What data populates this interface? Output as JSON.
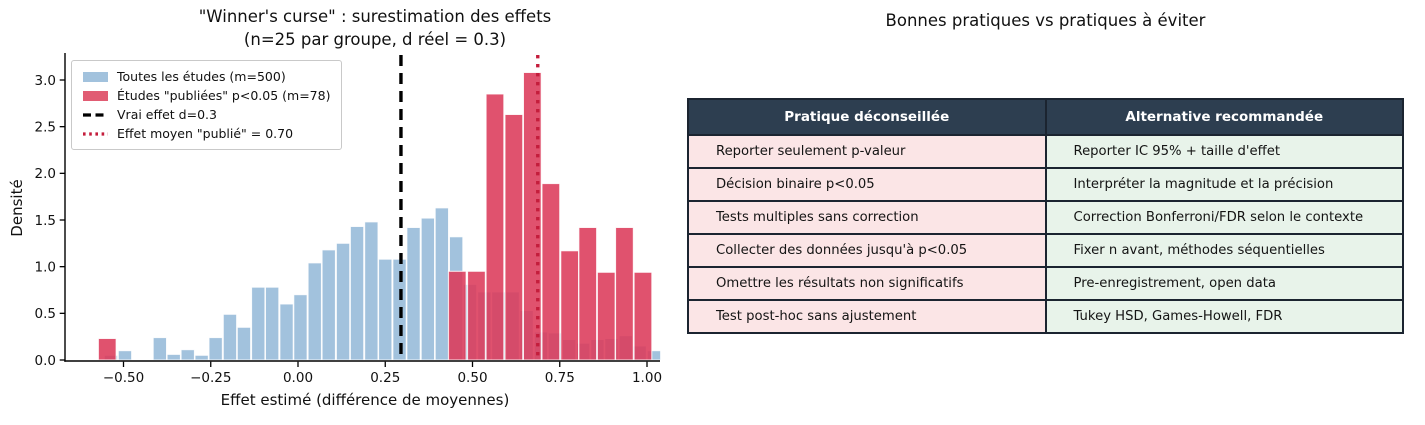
{
  "chart": {
    "title_line1": "\"Winner's curse\" : surestimation des effets",
    "title_line2": "(n=25 par groupe, d réel = 0.3)",
    "xlabel": "Effet estimé (différence de moyennes)",
    "ylabel": "Densité",
    "legend": [
      {
        "label": "Toutes les études (m=500)",
        "type": "patch",
        "color": "#a2c2dd"
      },
      {
        "label": "Études \"publiées\" p<0.05 (m=78)",
        "type": "patch",
        "color": "#e15c73"
      },
      {
        "label": "Vrai effet d=0.3",
        "type": "dashed",
        "color": "#000000"
      },
      {
        "label": "Effet moyen \"publié\" = 0.70",
        "type": "dotted",
        "color": "#c41d3c"
      }
    ]
  },
  "chart_data": {
    "type": "bar",
    "subtype": "overlaid-histograms",
    "title": "\"Winner's curse\" : surestimation des effets (n=25 par groupe, d réel = 0.3)",
    "xlabel": "Effet estimé (différence de moyennes)",
    "ylabel": "Densité",
    "xlim": [
      -0.67,
      1.04
    ],
    "ylim": [
      0,
      3.27
    ],
    "grid": false,
    "legend_position": "upper-left",
    "xticks": [
      -0.5,
      -0.25,
      0,
      0.25,
      0.5,
      0.75,
      1.0
    ],
    "xtick_labels": [
      "−0.50",
      "−0.25",
      "0.00",
      "0.25",
      "0.50",
      "0.75",
      "1.00"
    ],
    "yticks": [
      0,
      0.5,
      1.0,
      1.5,
      2.0,
      2.5,
      3.0
    ],
    "ytick_labels": [
      "0.0",
      "0.5",
      "1.0",
      "1.5",
      "2.0",
      "2.5",
      "3.0"
    ],
    "true_effect_d": 0.3,
    "published_mean_effect": 0.7,
    "series": [
      {
        "name": "Toutes les études (m=500)",
        "m": 500,
        "color": "#a2c2dd",
        "opacity": 1,
        "bin_width": 0.0406,
        "bar_name": "all-studies-bar",
        "bars": [
          {
            "x": -0.555,
            "h": 0.05
          },
          {
            "x": -0.515,
            "h": 0.1
          },
          {
            "x": -0.415,
            "h": 0.24
          },
          {
            "x": -0.375,
            "h": 0.06
          },
          {
            "x": -0.335,
            "h": 0.11
          },
          {
            "x": -0.295,
            "h": 0.05
          },
          {
            "x": -0.255,
            "h": 0.24
          },
          {
            "x": -0.214,
            "h": 0.49
          },
          {
            "x": -0.174,
            "h": 0.35
          },
          {
            "x": -0.133,
            "h": 0.78
          },
          {
            "x": -0.093,
            "h": 0.78
          },
          {
            "x": -0.052,
            "h": 0.6
          },
          {
            "x": -0.012,
            "h": 0.7
          },
          {
            "x": 0.029,
            "h": 1.04
          },
          {
            "x": 0.069,
            "h": 1.18
          },
          {
            "x": 0.11,
            "h": 1.25
          },
          {
            "x": 0.15,
            "h": 1.43
          },
          {
            "x": 0.191,
            "h": 1.48
          },
          {
            "x": 0.231,
            "h": 1.08
          },
          {
            "x": 0.272,
            "h": 1.08
          },
          {
            "x": 0.312,
            "h": 1.42
          },
          {
            "x": 0.353,
            "h": 1.52
          },
          {
            "x": 0.393,
            "h": 1.63
          },
          {
            "x": 0.434,
            "h": 1.32
          },
          {
            "x": 0.474,
            "h": 0.81
          },
          {
            "x": 0.515,
            "h": 0.73
          },
          {
            "x": 0.555,
            "h": 0.73
          },
          {
            "x": 0.596,
            "h": 0.73
          },
          {
            "x": 0.636,
            "h": 0.53
          },
          {
            "x": 0.677,
            "h": 0.3
          },
          {
            "x": 0.717,
            "h": 0.29
          },
          {
            "x": 0.758,
            "h": 0.22
          },
          {
            "x": 0.798,
            "h": 0.18
          },
          {
            "x": 0.839,
            "h": 0.22
          },
          {
            "x": 0.879,
            "h": 0.23
          },
          {
            "x": 0.92,
            "h": 0.26
          },
          {
            "x": 0.96,
            "h": 0.15
          },
          {
            "x": 1.001,
            "h": 0.1
          }
        ]
      },
      {
        "name": "Études \"publiées\" p<0.05 (m=78)",
        "m": 78,
        "color": "#dc3a5a",
        "opacity": 0.88,
        "bin_width": 0.0533,
        "bar_name": "published-studies-bar",
        "bars": [
          {
            "x": -0.572,
            "h": 0.23
          },
          {
            "x": 0.431,
            "h": 0.95
          },
          {
            "x": 0.486,
            "h": 0.95
          },
          {
            "x": 0.539,
            "h": 2.85
          },
          {
            "x": 0.593,
            "h": 2.63
          },
          {
            "x": 0.646,
            "h": 3.08
          },
          {
            "x": 0.699,
            "h": 1.89
          },
          {
            "x": 0.753,
            "h": 1.17
          },
          {
            "x": 0.805,
            "h": 1.42
          },
          {
            "x": 0.858,
            "h": 0.94
          },
          {
            "x": 0.91,
            "h": 1.42
          },
          {
            "x": 0.963,
            "h": 0.94
          }
        ]
      }
    ],
    "vlines": [
      {
        "x": 0.295,
        "color": "#000000",
        "style": "dashed",
        "name": "true-effect-line",
        "label": "Vrai effet d=0.3"
      },
      {
        "x": 0.687,
        "color": "#c41d3c",
        "style": "dotted",
        "name": "published-mean-line",
        "label": "Effet moyen \"publié\" = 0.70"
      }
    ]
  },
  "table": {
    "title": "Bonnes pratiques vs pratiques à éviter",
    "headers": [
      "Pratique déconseillée",
      "Alternative recommandée"
    ],
    "rows": [
      [
        "Reporter seulement p-valeur",
        "Reporter IC 95% + taille d'effet"
      ],
      [
        "Décision binaire p<0.05",
        "Interpréter la magnitude et la précision"
      ],
      [
        "Tests multiples sans correction",
        "Correction Bonferroni/FDR selon le contexte"
      ],
      [
        "Collecter des données jusqu'à p<0.05",
        "Fixer n avant, méthodes séquentielles"
      ],
      [
        "Omettre les résultats non significatifs",
        "Pre-enregistrement, open data"
      ],
      [
        "Test post-hoc sans ajustement",
        "Tukey HSD, Games-Howell, FDR"
      ]
    ],
    "colors": {
      "header_bg": "#2d3e50",
      "header_text": "#ffffff",
      "left_cell_bg": "#fbe5e6",
      "right_cell_bg": "#e8f3ea",
      "border": "#1b2430"
    }
  }
}
